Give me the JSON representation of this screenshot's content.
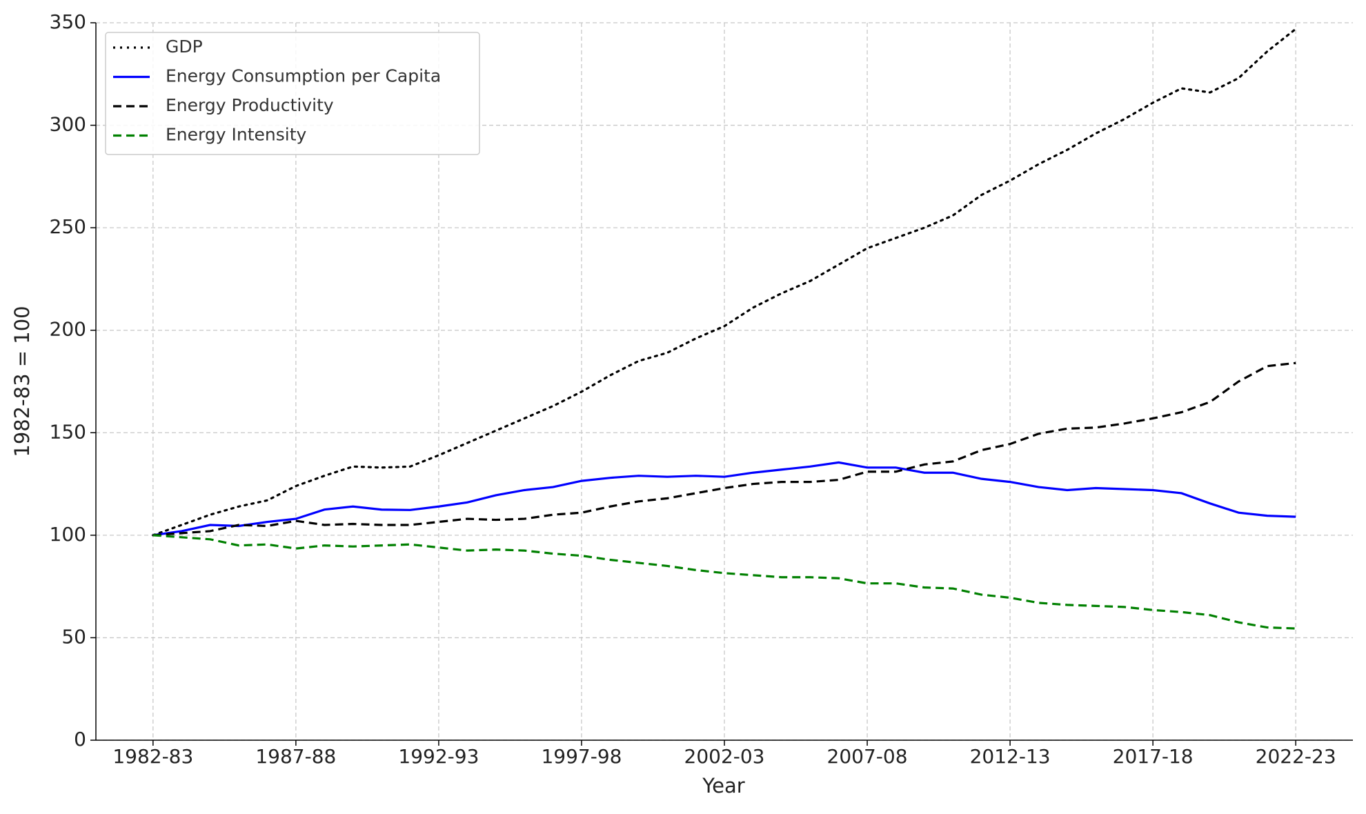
{
  "chart_data": {
    "type": "line",
    "xlabel": "Year",
    "ylabel": "1982-83 = 100",
    "categories": [
      "1982-83",
      null,
      null,
      null,
      null,
      "1987-88",
      null,
      null,
      null,
      null,
      "1992-93",
      null,
      null,
      null,
      null,
      "1997-98",
      null,
      null,
      null,
      null,
      "2002-03",
      null,
      null,
      null,
      null,
      "2007-08",
      null,
      null,
      null,
      null,
      "2012-13",
      null,
      null,
      null,
      null,
      "2017-18",
      null,
      null,
      null,
      null,
      "2022-23"
    ],
    "ylim": [
      0,
      350
    ],
    "yticks": [
      0,
      50,
      100,
      150,
      200,
      250,
      300,
      350
    ],
    "grid": true,
    "legend": "upper left",
    "series": [
      {
        "name": "GDP",
        "color": "#000000",
        "style": "dotted",
        "values": [
          100,
          105,
          110,
          114,
          117,
          124,
          129,
          133.5,
          133,
          133.5,
          139,
          145,
          151,
          157,
          163,
          170,
          178,
          185,
          189,
          196,
          202,
          211,
          218,
          224,
          232,
          240,
          245,
          250,
          256,
          266,
          273,
          281,
          288,
          296,
          303,
          311,
          318,
          316,
          323,
          336,
          347
        ]
      },
      {
        "name": "Energy Consumption per Capita",
        "color": "#0000ff",
        "style": "solid",
        "values": [
          100,
          102,
          105,
          104.5,
          106.5,
          108,
          112.5,
          114,
          112.5,
          112.3,
          114,
          116,
          119.5,
          122,
          123.5,
          126.5,
          128,
          129,
          128.5,
          129,
          128.5,
          130.5,
          132,
          133.5,
          135.5,
          133,
          133,
          130.5,
          130.5,
          127.5,
          126,
          123.5,
          122,
          123,
          122.5,
          122,
          120.5,
          115.5,
          111,
          109.5,
          109
        ]
      },
      {
        "name": "Energy Productivity",
        "color": "#000000",
        "style": "dashed",
        "values": [
          100,
          101,
          102,
          105,
          104.5,
          107,
          105,
          105.5,
          105,
          105,
          106.5,
          108,
          107.5,
          108,
          110,
          111,
          114,
          116.5,
          118,
          120.5,
          123,
          125,
          126,
          126,
          127,
          131,
          131,
          134.5,
          136,
          141.5,
          144.5,
          149.5,
          152,
          152.5,
          154.5,
          157,
          160,
          165,
          175,
          182.5,
          184
        ]
      },
      {
        "name": "Energy Intensity",
        "color": "#008000",
        "style": "dashed",
        "values": [
          100,
          99,
          98,
          95,
          95.5,
          93.5,
          95,
          94.5,
          95,
          95.5,
          94,
          92.5,
          93,
          92.5,
          91,
          90,
          88,
          86.5,
          85,
          83,
          81.5,
          80.5,
          79.5,
          79.5,
          79,
          76.5,
          76.5,
          74.5,
          74,
          71,
          69.5,
          67,
          66,
          65.5,
          65,
          63.5,
          62.5,
          61,
          57.5,
          55,
          54.5
        ]
      }
    ]
  }
}
